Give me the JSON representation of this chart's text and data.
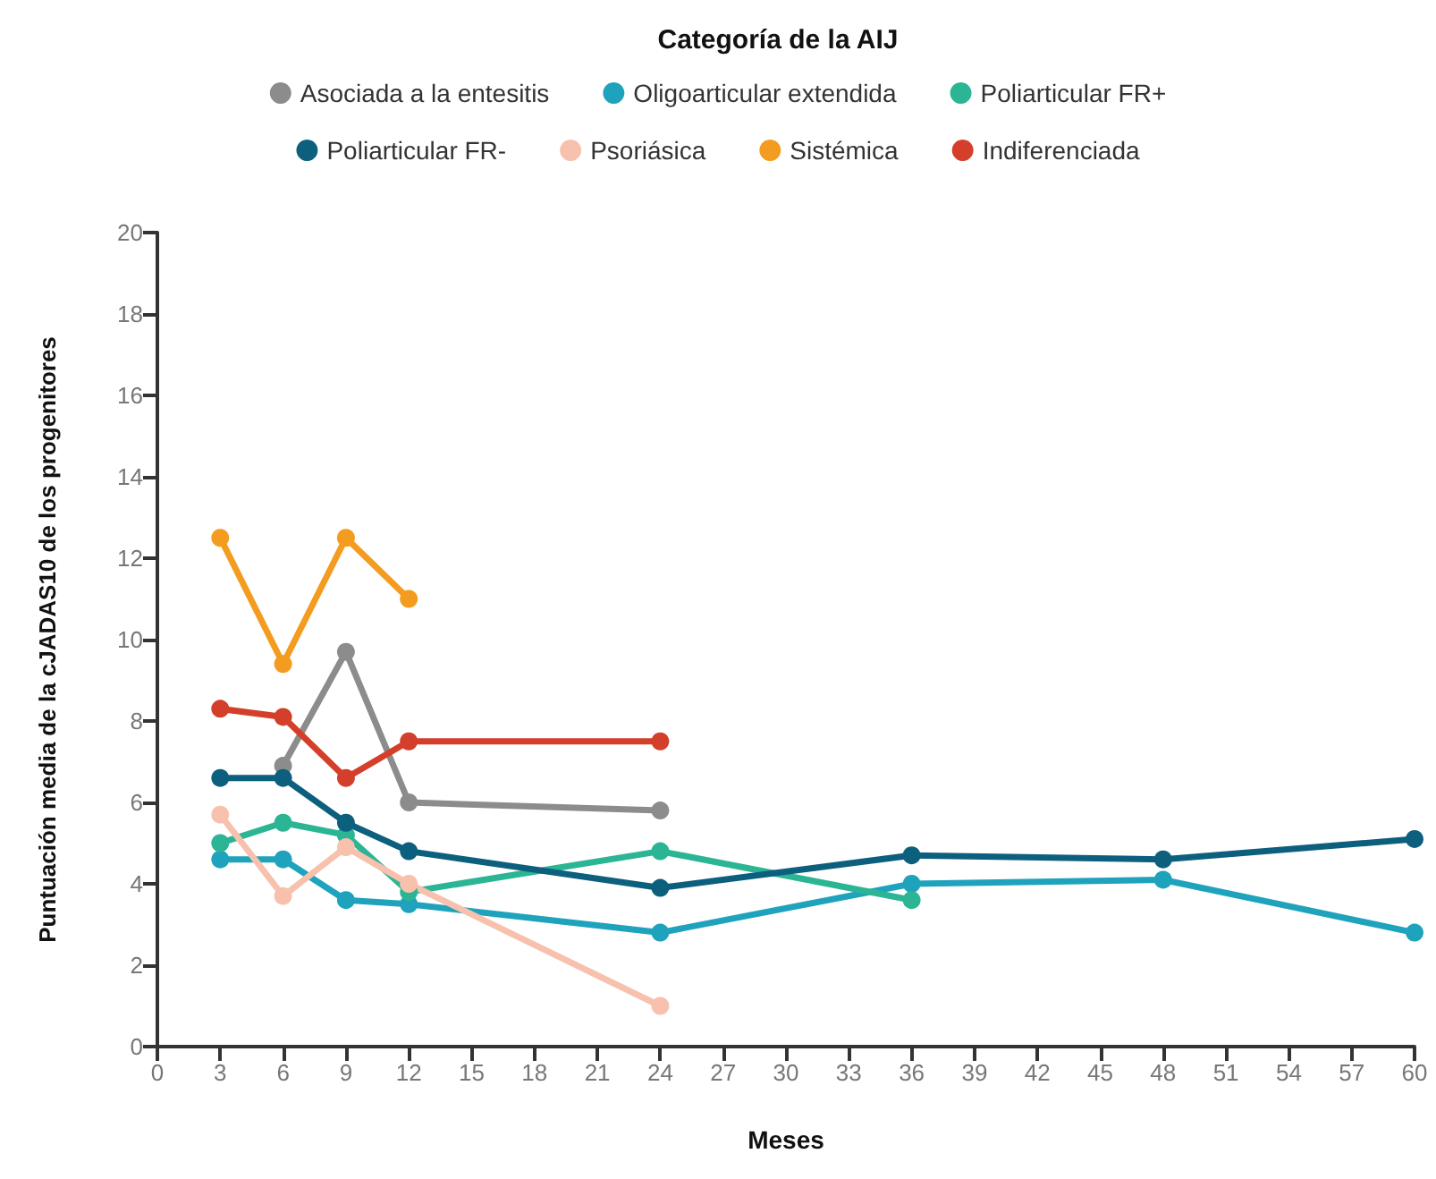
{
  "chart_data": {
    "type": "line",
    "title": "Categoría de la AIJ",
    "xlabel": "Meses",
    "ylabel": "Puntuación media de la cJADAS10 de los progenitores",
    "series": [
      {
        "name": "Asociada a la entesitis",
        "color": "#8c8c8c",
        "x": [
          6,
          9,
          12,
          24
        ],
        "values": [
          6.9,
          9.7,
          6.0,
          5.8
        ]
      },
      {
        "name": "Oligoarticular extendida",
        "color": "#1fa3bd",
        "x": [
          3,
          6,
          9,
          12,
          24,
          36,
          48,
          60
        ],
        "values": [
          4.6,
          4.6,
          3.6,
          3.5,
          2.8,
          4.0,
          4.1,
          2.8
        ]
      },
      {
        "name": "Poliarticular FR+",
        "color": "#2bb594",
        "x": [
          3,
          6,
          9,
          12,
          24,
          36
        ],
        "values": [
          5.0,
          5.5,
          5.2,
          3.8,
          4.8,
          3.6
        ]
      },
      {
        "name": "Poliarticular FR-",
        "color": "#0d5f7e",
        "x": [
          3,
          6,
          9,
          12,
          24,
          36,
          48,
          60
        ],
        "values": [
          6.6,
          6.6,
          5.5,
          4.8,
          3.9,
          4.7,
          4.6,
          5.1
        ]
      },
      {
        "name": "Psoriásica",
        "color": "#f7c1ad",
        "x": [
          3,
          6,
          9,
          12,
          24
        ],
        "values": [
          5.7,
          3.7,
          4.9,
          4.0,
          1.0
        ]
      },
      {
        "name": "Sistémica",
        "color": "#f39c1f",
        "x": [
          3,
          6,
          9,
          12
        ],
        "values": [
          12.5,
          9.4,
          12.5,
          11.0
        ]
      },
      {
        "name": "Indiferenciada",
        "color": "#d33f2a",
        "x": [
          3,
          6,
          9,
          12,
          24
        ],
        "values": [
          8.3,
          8.1,
          6.6,
          7.5,
          7.5
        ]
      }
    ],
    "xlim": [
      0,
      60
    ],
    "xticks": [
      0,
      3,
      6,
      9,
      12,
      15,
      18,
      21,
      24,
      27,
      30,
      33,
      36,
      39,
      42,
      45,
      48,
      51,
      54,
      57,
      60
    ],
    "ylim": [
      0,
      20
    ],
    "yticks": [
      0,
      2,
      4,
      6,
      8,
      10,
      12,
      14,
      16,
      18,
      20
    ],
    "grid": false,
    "legend": "top",
    "marker": "circle",
    "line_style": "solid"
  }
}
